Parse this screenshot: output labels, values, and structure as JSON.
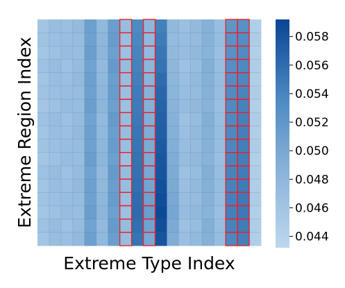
{
  "chart_data": {
    "type": "heatmap",
    "title": "",
    "xlabel": "Extreme Type Index",
    "ylabel": "Extreme Region Index",
    "x_ticks_shown": false,
    "y_ticks_shown": false,
    "grid": true,
    "colormap": "Blues",
    "color_range": [
      0.0432,
      0.0592
    ],
    "colorbar": {
      "ticks": [
        0.044,
        0.046,
        0.048,
        0.05,
        0.052,
        0.054,
        0.056,
        0.058
      ],
      "tick_labels": [
        "0.044",
        "0.046",
        "0.048",
        "0.050",
        "0.052",
        "0.054",
        "0.056",
        "0.058"
      ],
      "placement": "right"
    },
    "n_cols": 19,
    "n_rows": 17,
    "highlighted_columns": [
      7,
      9,
      16,
      17
    ],
    "highlight_color": "#e8242c",
    "values": [
      [
        0.046,
        0.047,
        0.0468,
        0.0475,
        0.051,
        0.0478,
        0.0512,
        0.047,
        0.0535,
        0.048,
        0.0543,
        0.0478,
        0.0468,
        0.0476,
        0.049,
        0.047,
        0.0522,
        0.0528,
        0.0446
      ],
      [
        0.0462,
        0.0468,
        0.047,
        0.0472,
        0.0508,
        0.048,
        0.0514,
        0.0468,
        0.0538,
        0.0478,
        0.0548,
        0.0475,
        0.047,
        0.0474,
        0.0488,
        0.0472,
        0.0526,
        0.0532,
        0.0448
      ],
      [
        0.0458,
        0.0466,
        0.0472,
        0.047,
        0.0512,
        0.0482,
        0.051,
        0.0466,
        0.054,
        0.0476,
        0.0552,
        0.0477,
        0.0472,
        0.0478,
        0.0486,
        0.0468,
        0.0528,
        0.0534,
        0.0444
      ],
      [
        0.0464,
        0.0472,
        0.0466,
        0.0474,
        0.0506,
        0.0476,
        0.0516,
        0.0472,
        0.0542,
        0.0482,
        0.0555,
        0.048,
        0.0466,
        0.0472,
        0.0492,
        0.047,
        0.053,
        0.0536,
        0.0447
      ],
      [
        0.046,
        0.047,
        0.0468,
        0.0476,
        0.051,
        0.0478,
        0.0512,
        0.047,
        0.0545,
        0.0485,
        0.056,
        0.0482,
        0.0468,
        0.0476,
        0.049,
        0.0472,
        0.0532,
        0.0538,
        0.0446
      ],
      [
        0.0462,
        0.0468,
        0.047,
        0.0472,
        0.0508,
        0.048,
        0.0514,
        0.0468,
        0.0547,
        0.0488,
        0.0565,
        0.0484,
        0.047,
        0.0474,
        0.0488,
        0.047,
        0.0534,
        0.054,
        0.0448
      ],
      [
        0.0458,
        0.0466,
        0.0472,
        0.047,
        0.0512,
        0.0482,
        0.051,
        0.0466,
        0.0548,
        0.049,
        0.0568,
        0.0486,
        0.0472,
        0.0478,
        0.0486,
        0.0468,
        0.0535,
        0.0542,
        0.0444
      ],
      [
        0.0464,
        0.0472,
        0.0466,
        0.0474,
        0.0506,
        0.0476,
        0.0516,
        0.0472,
        0.055,
        0.0492,
        0.057,
        0.0488,
        0.0466,
        0.0472,
        0.0492,
        0.047,
        0.0536,
        0.0543,
        0.0447
      ],
      [
        0.046,
        0.047,
        0.0468,
        0.0476,
        0.051,
        0.0478,
        0.0512,
        0.047,
        0.0552,
        0.0494,
        0.0572,
        0.049,
        0.0468,
        0.0476,
        0.049,
        0.0472,
        0.0537,
        0.0544,
        0.0446
      ],
      [
        0.0462,
        0.0468,
        0.047,
        0.0472,
        0.0508,
        0.048,
        0.0514,
        0.0468,
        0.0553,
        0.0496,
        0.0575,
        0.0492,
        0.047,
        0.0474,
        0.0488,
        0.047,
        0.0538,
        0.0545,
        0.0448
      ],
      [
        0.0458,
        0.0466,
        0.0472,
        0.047,
        0.0512,
        0.0482,
        0.051,
        0.0466,
        0.0555,
        0.0498,
        0.0578,
        0.0494,
        0.0472,
        0.0478,
        0.0486,
        0.0468,
        0.054,
        0.0546,
        0.0444
      ],
      [
        0.0464,
        0.0472,
        0.0466,
        0.0474,
        0.0506,
        0.0476,
        0.0516,
        0.0472,
        0.0556,
        0.05,
        0.058,
        0.0496,
        0.0466,
        0.0472,
        0.0492,
        0.047,
        0.0541,
        0.0547,
        0.0447
      ],
      [
        0.046,
        0.047,
        0.0468,
        0.0476,
        0.051,
        0.0478,
        0.0512,
        0.047,
        0.0558,
        0.0504,
        0.0583,
        0.0498,
        0.0468,
        0.0476,
        0.049,
        0.0472,
        0.0542,
        0.0548,
        0.0446
      ],
      [
        0.0462,
        0.0468,
        0.047,
        0.0472,
        0.0508,
        0.048,
        0.0514,
        0.0468,
        0.056,
        0.0508,
        0.0586,
        0.05,
        0.047,
        0.0474,
        0.0488,
        0.047,
        0.0543,
        0.0549,
        0.0448
      ],
      [
        0.0458,
        0.0466,
        0.0472,
        0.047,
        0.0512,
        0.0482,
        0.051,
        0.0466,
        0.0561,
        0.0512,
        0.0589,
        0.0502,
        0.0472,
        0.0478,
        0.0486,
        0.0468,
        0.0544,
        0.055,
        0.0444
      ],
      [
        0.0464,
        0.0472,
        0.0466,
        0.0474,
        0.0506,
        0.0476,
        0.0516,
        0.0472,
        0.0558,
        0.0506,
        0.0585,
        0.0498,
        0.0466,
        0.0472,
        0.0492,
        0.047,
        0.0541,
        0.0547,
        0.0447
      ],
      [
        0.046,
        0.047,
        0.0468,
        0.0476,
        0.051,
        0.0478,
        0.0512,
        0.047,
        0.0554,
        0.05,
        0.058,
        0.0494,
        0.0468,
        0.0476,
        0.049,
        0.0472,
        0.0538,
        0.0544,
        0.0446
      ]
    ]
  }
}
